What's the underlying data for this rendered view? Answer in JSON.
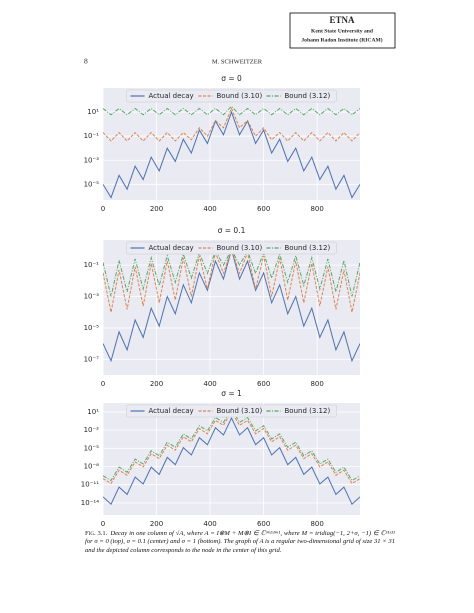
{
  "header": {
    "journal": "ETNA",
    "line1": "Kent State University and",
    "line2": "Johann Radon Institute (RICAM)"
  },
  "page_number": "8",
  "running_head": "M. SCHWEITZER",
  "chart_data": [
    {
      "type": "line",
      "title": "σ = 0",
      "log_y": true,
      "grid": true,
      "legend": "upper center",
      "x": [
        0,
        30,
        60,
        90,
        120,
        150,
        180,
        210,
        240,
        270,
        300,
        330,
        360,
        390,
        420,
        450,
        480,
        510,
        540,
        570,
        600,
        630,
        660,
        690,
        720,
        750,
        780,
        810,
        840,
        870,
        900,
        930,
        960
      ],
      "xlim": [
        0,
        960
      ],
      "xticks": [
        0,
        200,
        400,
        600,
        800
      ],
      "ylim": [
        5e-07,
        1000
      ],
      "yticks": [
        {
          "value": 10,
          "label": "10¹"
        },
        {
          "value": 0.1,
          "label": "10⁻¹"
        },
        {
          "value": 0.001,
          "label": "10⁻³"
        },
        {
          "value": 1e-05,
          "label": "10⁻⁵"
        }
      ],
      "series": [
        {
          "name": "Actual decay",
          "color": "#4c72b0",
          "dash": "solid",
          "values": [
            1e-05,
            8e-07,
            5.6e-05,
            4e-06,
            0.00032,
            2.5e-05,
            0.0018,
            0.00013,
            0.01,
            0.0008,
            0.056,
            0.004,
            0.32,
            0.025,
            1.8,
            0.13,
            10,
            0.13,
            1.8,
            0.025,
            0.32,
            0.004,
            0.056,
            0.0008,
            0.01,
            0.00013,
            0.0018,
            2.5e-05,
            0.00032,
            4e-06,
            5.6e-05,
            8e-07,
            1e-05
          ]
        },
        {
          "name": "Bound (3.10)",
          "color": "#dd8452",
          "dash": "dashed",
          "values": [
            0.2,
            0.04,
            0.2,
            0.04,
            0.2,
            0.04,
            0.2,
            0.04,
            0.2,
            0.04,
            0.2,
            0.05,
            0.5,
            0.1,
            2,
            0.5,
            20,
            0.5,
            2,
            0.1,
            0.5,
            0.05,
            0.2,
            0.04,
            0.2,
            0.04,
            0.2,
            0.04,
            0.2,
            0.04,
            0.2,
            0.04,
            0.2
          ]
        },
        {
          "name": "Bound (3.12)",
          "color": "#55a868",
          "dash": "dashdot",
          "values": [
            20,
            6,
            20,
            6,
            20,
            6,
            20,
            6,
            20,
            6,
            20,
            6,
            20,
            6,
            20,
            6,
            30,
            6,
            20,
            6,
            20,
            6,
            20,
            6,
            20,
            6,
            20,
            6,
            20,
            6,
            20,
            6,
            20
          ]
        }
      ]
    },
    {
      "type": "line",
      "title": "σ = 0.1",
      "log_y": true,
      "grid": true,
      "legend": "upper center",
      "x": [
        0,
        30,
        60,
        90,
        120,
        150,
        180,
        210,
        240,
        270,
        300,
        330,
        360,
        390,
        420,
        450,
        480,
        510,
        540,
        570,
        600,
        630,
        660,
        690,
        720,
        750,
        780,
        810,
        840,
        870,
        900,
        930,
        960
      ],
      "xlim": [
        0,
        960
      ],
      "xticks": [
        0,
        200,
        400,
        600,
        800
      ],
      "ylim": [
        1e-08,
        4
      ],
      "yticks": [
        {
          "value": 0.1,
          "label": "10⁻¹"
        },
        {
          "value": 0.001,
          "label": "10⁻³"
        },
        {
          "value": 1e-05,
          "label": "10⁻⁵"
        },
        {
          "value": 1e-07,
          "label": "10⁻⁷"
        }
      ],
      "series": [
        {
          "name": "Actual decay",
          "color": "#4c72b0",
          "dash": "solid",
          "values": [
            1e-06,
            8e-08,
            5.6e-06,
            4e-07,
            3.2e-05,
            2.5e-06,
            0.00018,
            1.3e-05,
            0.001,
            8e-05,
            0.0056,
            0.0004,
            0.032,
            0.0025,
            0.18,
            0.013,
            1,
            0.013,
            0.18,
            0.0025,
            0.032,
            0.0004,
            0.0056,
            8e-05,
            0.001,
            1.3e-05,
            0.00018,
            2.5e-06,
            3.2e-05,
            4e-07,
            5.6e-06,
            8e-08,
            1e-06
          ]
        },
        {
          "name": "Bound (3.10)",
          "color": "#dd8452",
          "dash": "dashed",
          "values": [
            0.032,
            0.0001,
            0.05,
            0.00015,
            0.08,
            0.00025,
            0.13,
            0.0004,
            0.18,
            0.0006,
            0.28,
            0.001,
            0.4,
            0.003,
            0.63,
            0.03,
            1,
            0.03,
            0.63,
            0.003,
            0.4,
            0.001,
            0.28,
            0.0006,
            0.18,
            0.0004,
            0.13,
            0.00025,
            0.08,
            0.00015,
            0.05,
            0.0001,
            0.032
          ]
        },
        {
          "name": "Bound (3.12)",
          "color": "#55a868",
          "dash": "dashdot",
          "values": [
            0.15,
            0.001,
            0.2,
            0.002,
            0.25,
            0.003,
            0.3,
            0.005,
            0.4,
            0.008,
            0.5,
            0.015,
            0.6,
            0.03,
            0.8,
            0.1,
            1,
            0.1,
            0.8,
            0.03,
            0.6,
            0.015,
            0.5,
            0.008,
            0.4,
            0.005,
            0.3,
            0.003,
            0.25,
            0.002,
            0.2,
            0.001,
            0.15
          ]
        }
      ]
    },
    {
      "type": "line",
      "title": "σ = 1",
      "log_y": true,
      "grid": true,
      "legend": "upper center",
      "x": [
        0,
        30,
        60,
        90,
        120,
        150,
        180,
        210,
        240,
        270,
        300,
        330,
        360,
        390,
        420,
        450,
        480,
        510,
        540,
        570,
        600,
        630,
        660,
        690,
        720,
        750,
        780,
        810,
        840,
        870,
        900,
        930,
        960
      ],
      "xlim": [
        0,
        960
      ],
      "xticks": [
        0,
        200,
        400,
        600,
        800
      ],
      "ylim": [
        1e-16,
        300
      ],
      "yticks": [
        {
          "value": 10,
          "label": "10¹"
        },
        {
          "value": 0.01,
          "label": "10⁻²"
        },
        {
          "value": 1e-05,
          "label": "10⁻⁵"
        },
        {
          "value": 1e-08,
          "label": "10⁻⁸"
        },
        {
          "value": 1e-11,
          "label": "10⁻¹¹"
        },
        {
          "value": 1e-14,
          "label": "10⁻¹⁴"
        }
      ],
      "series": [
        {
          "name": "Actual decay",
          "color": "#4c72b0",
          "dash": "solid",
          "values": [
            1e-13,
            6e-15,
            4e-12,
            2.5e-13,
            1.8e-10,
            1.3e-11,
            8e-09,
            5e-10,
            3.2e-07,
            2e-08,
            1.3e-05,
            8e-07,
            0.00056,
            4e-05,
            0.025,
            0.0016,
            1,
            0.0016,
            0.025,
            4e-05,
            0.00056,
            8e-07,
            1.3e-05,
            2e-08,
            3.2e-07,
            5e-10,
            8e-09,
            1.3e-11,
            1.8e-10,
            2.5e-13,
            4e-12,
            6e-15,
            1e-13
          ]
        },
        {
          "name": "Bound (3.10)",
          "color": "#dd8452",
          "dash": "dashed",
          "values": [
            1e-10,
            1.6e-11,
            2.5e-09,
            3.6e-10,
            5.6e-08,
            8.7e-09,
            1.3e-06,
            2e-07,
            3.2e-05,
            5e-06,
            0.0008,
            0.00012,
            0.018,
            0.0025,
            0.4,
            0.063,
            10,
            0.063,
            0.4,
            0.0025,
            0.018,
            0.00012,
            0.0008,
            5e-06,
            3.2e-05,
            2e-07,
            1.3e-06,
            8.7e-09,
            5.6e-08,
            3.6e-10,
            2.5e-09,
            1.6e-11,
            1e-10
          ]
        },
        {
          "name": "Bound (3.12)",
          "color": "#55a868",
          "dash": "dashdot",
          "values": [
            3e-10,
            5e-11,
            8e-09,
            1.1e-09,
            1.7e-07,
            2.6e-08,
            4e-06,
            6e-07,
            0.0001,
            1.5e-05,
            0.0024,
            0.00036,
            0.054,
            0.0075,
            1.2,
            0.19,
            30,
            0.19,
            1.2,
            0.0075,
            0.054,
            0.00036,
            0.0024,
            1.5e-05,
            0.0001,
            6e-07,
            4e-06,
            2.6e-08,
            1.7e-07,
            1.1e-09,
            8e-09,
            5e-11,
            3e-10
          ]
        }
      ]
    }
  ],
  "caption": {
    "label": "Fig. 3.1.",
    "text": "Decay in one column of √A, where A = I⊗M + M⊗I ∈ ℂ⁹⁶¹ˣ⁹⁶¹, where M = tridiag(−1, 2+σ, −1) ∈ ℂ³¹ˣ³¹ for σ = 0 (top), σ = 0.1 (center) and σ = 1 (bottom). The graph of A is a regular two-dimensional grid of size 31 × 31 and the depicted column corresponds to the node in the center of this grid."
  }
}
